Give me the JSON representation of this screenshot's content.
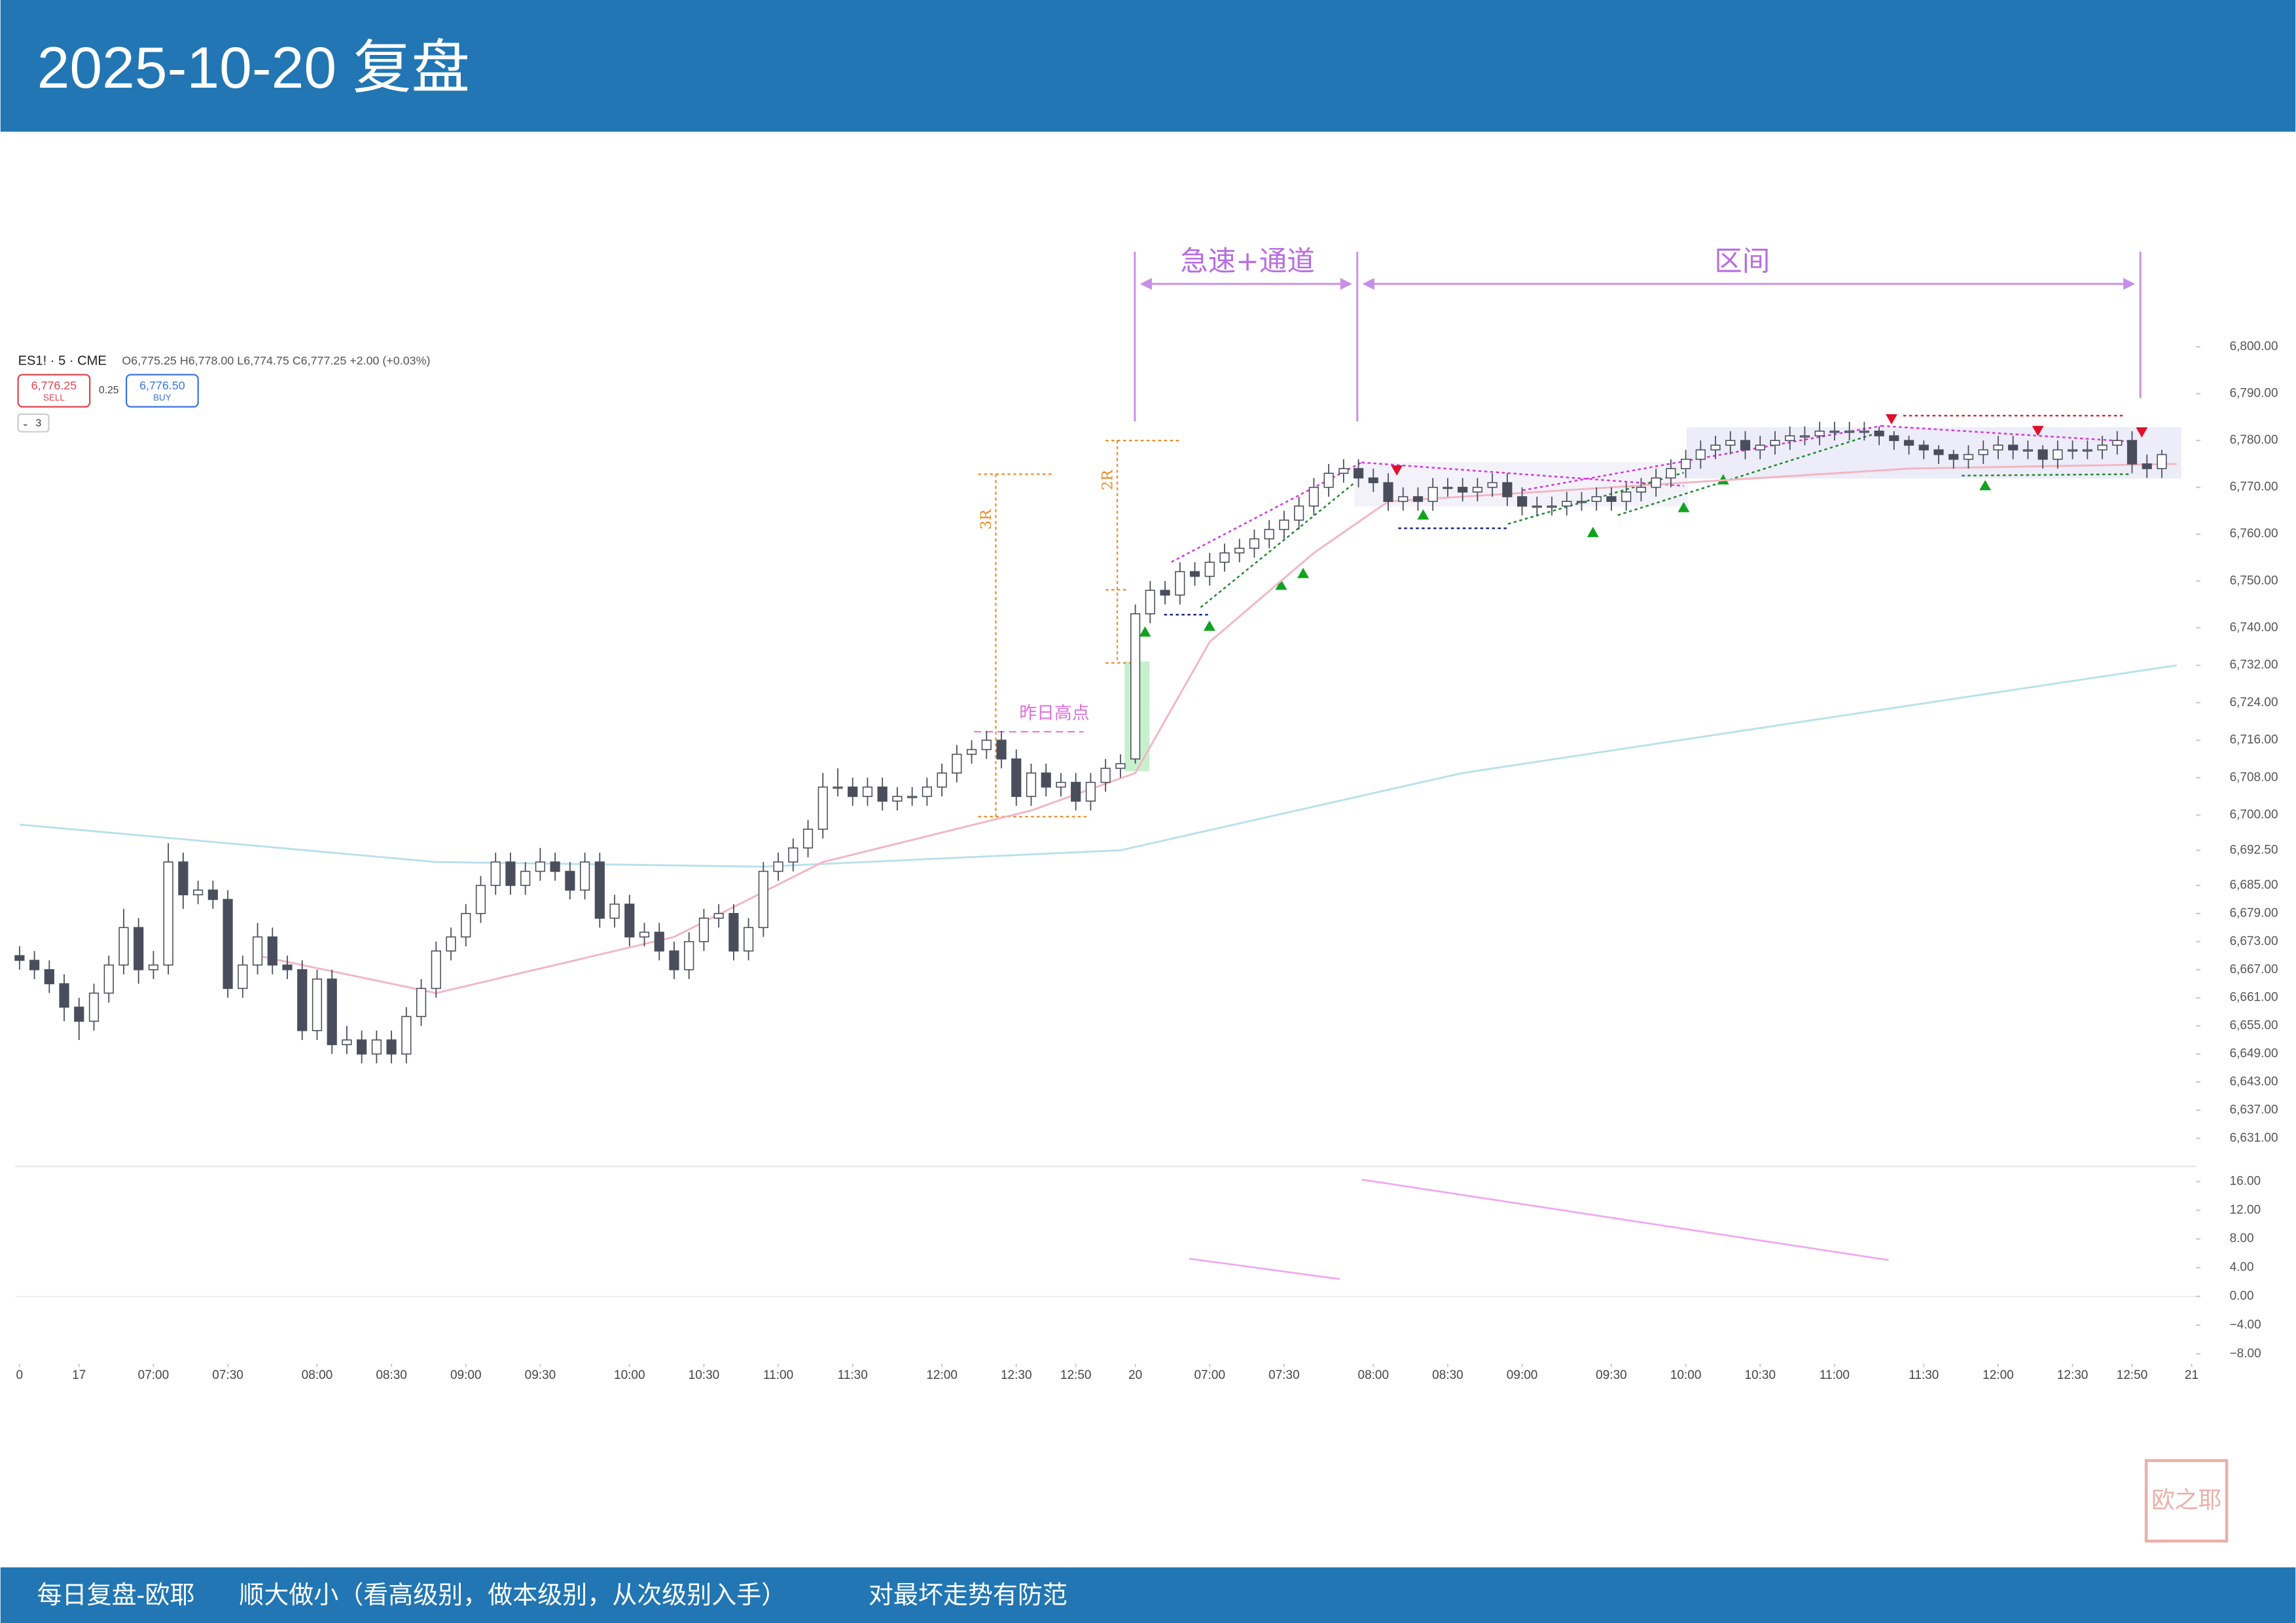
{
  "header": {
    "title": "2025-10-20 复盘"
  },
  "footer": {
    "items": [
      "每日复盘-欧耶",
      "顺大做小（看高级别，做本级别，从次级别入手）",
      "对最坏走势有防范"
    ]
  },
  "stamp": "欧之耶",
  "chart_data": {
    "type": "candlestick",
    "symbol": "ES1! · 5 · CME",
    "ohlc_legend": "O6,775.25 H6,778.00 L6,774.75 C6,777.25 +2.00 (+0.03%)",
    "sell_price": "6,776.25",
    "sell_label": "SELL",
    "spread": "0.25",
    "buy_price": "6,776.50",
    "buy_label": "BUY",
    "indicator_count": "3",
    "annotations": {
      "fast_channel": "急速+通道",
      "range": "区间",
      "prev_high": "昨日高点",
      "r3": "3R",
      "r2": "2R"
    },
    "up_color": "#ffffff",
    "down_color": "#4a4e5c",
    "outline_color": "#4a4e5c",
    "xlim": [
      0,
      146
    ],
    "xticks": [
      {
        "value": 0,
        "label": "0"
      },
      {
        "value": 4,
        "label": "17"
      },
      {
        "value": 9,
        "label": "07:00"
      },
      {
        "value": 14,
        "label": "07:30"
      },
      {
        "value": 20,
        "label": "08:00"
      },
      {
        "value": 25,
        "label": "08:30"
      },
      {
        "value": 30,
        "label": "09:00"
      },
      {
        "value": 35,
        "label": "09:30"
      },
      {
        "value": 41,
        "label": "10:00"
      },
      {
        "value": 46,
        "label": "10:30"
      },
      {
        "value": 51,
        "label": "11:00"
      },
      {
        "value": 56,
        "label": "11:30"
      },
      {
        "value": 62,
        "label": "12:00"
      },
      {
        "value": 67,
        "label": "12:30"
      },
      {
        "value": 71,
        "label": "12:50"
      },
      {
        "value": 75,
        "label": "20"
      },
      {
        "value": 80,
        "label": "07:00"
      },
      {
        "value": 85,
        "label": "07:30"
      },
      {
        "value": 91,
        "label": "08:00"
      },
      {
        "value": 96,
        "label": "08:30"
      },
      {
        "value": 101,
        "label": "09:00"
      },
      {
        "value": 107,
        "label": "09:30"
      },
      {
        "value": 112,
        "label": "10:00"
      },
      {
        "value": 117,
        "label": "10:30"
      },
      {
        "value": 122,
        "label": "11:00"
      },
      {
        "value": 128,
        "label": "11:30"
      },
      {
        "value": 133,
        "label": "12:00"
      },
      {
        "value": 138,
        "label": "12:30"
      },
      {
        "value": 142,
        "label": "12:50"
      },
      {
        "value": 146,
        "label": "21"
      }
    ],
    "ylim": [
      6625,
      6800
    ],
    "yticks": [
      {
        "value": 6800,
        "label": "6,800.00"
      },
      {
        "value": 6790,
        "label": "6,790.00"
      },
      {
        "value": 6780,
        "label": "6,780.00"
      },
      {
        "value": 6770,
        "label": "6,770.00"
      },
      {
        "value": 6760,
        "label": "6,760.00"
      },
      {
        "value": 6750,
        "label": "6,750.00"
      },
      {
        "value": 6740,
        "label": "6,740.00"
      },
      {
        "value": 6732,
        "label": "6,732.00"
      },
      {
        "value": 6724,
        "label": "6,724.00"
      },
      {
        "value": 6716,
        "label": "6,716.00"
      },
      {
        "value": 6708,
        "label": "6,708.00"
      },
      {
        "value": 6700,
        "label": "6,700.00"
      },
      {
        "value": 6692.5,
        "label": "6,692.50"
      },
      {
        "value": 6685,
        "label": "6,685.00"
      },
      {
        "value": 6679,
        "label": "6,679.00"
      },
      {
        "value": 6673,
        "label": "6,673.00"
      },
      {
        "value": 6667,
        "label": "6,667.00"
      },
      {
        "value": 6661,
        "label": "6,661.00"
      },
      {
        "value": 6655,
        "label": "6,655.00"
      },
      {
        "value": 6649,
        "label": "6,649.00"
      },
      {
        "value": 6643,
        "label": "6,643.00"
      },
      {
        "value": 6637,
        "label": "6,637.00"
      },
      {
        "value": 6631,
        "label": "6,631.00"
      }
    ],
    "macd_ylim": [
      -9,
      17.5
    ],
    "macd_yticks": [
      {
        "value": 16,
        "label": "16.00"
      },
      {
        "value": 12,
        "label": "12.00"
      },
      {
        "value": 8,
        "label": "8.00"
      },
      {
        "value": 4,
        "label": "4.00"
      },
      {
        "value": 0,
        "label": "0.00"
      },
      {
        "value": -4,
        "label": "−4.00"
      },
      {
        "value": -8,
        "label": "−8.00"
      }
    ],
    "series": [
      {
        "color": "#b9e0ec",
        "x": [
          0,
          28,
          50,
          74,
          97,
          122,
          145
        ],
        "values": [
          6698,
          6690,
          6689,
          6692.5,
          6709,
          6721,
          6732
        ]
      },
      {
        "color": "#f2b6c2",
        "x": [
          16,
          28,
          44,
          54,
          68,
          75,
          80,
          87,
          92,
          107,
          127,
          145
        ],
        "values": [
          6670,
          6662,
          6674,
          6690,
          6701,
          6709,
          6737,
          6756,
          6767,
          6770,
          6774,
          6775
        ]
      }
    ],
    "ohlc": [
      [
        6670,
        6672,
        6667,
        6669
      ],
      [
        6669,
        6671,
        6665,
        6667
      ],
      [
        6667,
        6669,
        6662,
        6664
      ],
      [
        6664,
        6666,
        6656,
        6659
      ],
      [
        6659,
        6661,
        6652,
        6656
      ],
      [
        6656,
        6664,
        6654,
        6662
      ],
      [
        6662,
        6670,
        6660,
        6668
      ],
      [
        6668,
        6680,
        6666,
        6676
      ],
      [
        6676,
        6678,
        6664,
        6667
      ],
      [
        6667,
        6671,
        6665,
        6668
      ],
      [
        6668,
        6694,
        6666,
        6690
      ],
      [
        6690,
        6692,
        6680,
        6683
      ],
      [
        6683,
        6686,
        6681,
        6684
      ],
      [
        6684,
        6686,
        6680,
        6682
      ],
      [
        6682,
        6684,
        6661,
        6663
      ],
      [
        6663,
        6670,
        6661,
        6668
      ],
      [
        6668,
        6677,
        6666,
        6674
      ],
      [
        6674,
        6676,
        6666,
        6668
      ],
      [
        6668,
        6670,
        6665,
        6667
      ],
      [
        6667,
        6669,
        6652,
        6654
      ],
      [
        6654,
        6667,
        6652,
        6665
      ],
      [
        6665,
        6667,
        6649,
        6651
      ],
      [
        6651,
        6655,
        6649,
        6652
      ],
      [
        6652,
        6654,
        6647,
        6649
      ],
      [
        6649,
        6654,
        6647,
        6652
      ],
      [
        6652,
        6654,
        6647,
        6649
      ],
      [
        6649,
        6659,
        6647,
        6657
      ],
      [
        6657,
        6665,
        6655,
        6663
      ],
      [
        6663,
        6673,
        6661,
        6671
      ],
      [
        6671,
        6676,
        6669,
        6674
      ],
      [
        6674,
        6681,
        6672,
        6679
      ],
      [
        6679,
        6687,
        6677,
        6685
      ],
      [
        6685,
        6692,
        6683,
        6690
      ],
      [
        6690,
        6692,
        6683,
        6685
      ],
      [
        6685,
        6690,
        6683,
        6688
      ],
      [
        6688,
        6693,
        6686,
        6690
      ],
      [
        6690,
        6692,
        6686,
        6688
      ],
      [
        6688,
        6690,
        6682,
        6684
      ],
      [
        6684,
        6692,
        6682,
        6690
      ],
      [
        6690,
        6692,
        6676,
        6678
      ],
      [
        6678,
        6683,
        6676,
        6681
      ],
      [
        6681,
        6683,
        6672,
        6674
      ],
      [
        6674,
        6677,
        6672,
        6675
      ],
      [
        6675,
        6677,
        6669,
        6671
      ],
      [
        6671,
        6673,
        6665,
        6667
      ],
      [
        6667,
        6675,
        6665,
        6673
      ],
      [
        6673,
        6680,
        6671,
        6678
      ],
      [
        6678,
        6681,
        6676,
        6679
      ],
      [
        6679,
        6681,
        6669,
        6671
      ],
      [
        6671,
        6678,
        6669,
        6676
      ],
      [
        6676,
        6690,
        6674,
        6688
      ],
      [
        6688,
        6692,
        6686,
        6690
      ],
      [
        6690,
        6695,
        6688,
        6693
      ],
      [
        6693,
        6699,
        6691,
        6697
      ],
      [
        6697,
        6709,
        6695,
        6706
      ],
      [
        6706,
        6710,
        6704,
        6706
      ],
      [
        6706,
        6708,
        6702,
        6704
      ],
      [
        6704,
        6708,
        6702,
        6706
      ],
      [
        6706,
        6708,
        6701,
        6703
      ],
      [
        6703,
        6706,
        6701,
        6704
      ],
      [
        6704,
        6706,
        6702,
        6704
      ],
      [
        6704,
        6708,
        6702,
        6706
      ],
      [
        6706,
        6711,
        6704,
        6709
      ],
      [
        6709,
        6715,
        6707,
        6713
      ],
      [
        6713,
        6716,
        6711,
        6714
      ],
      [
        6714,
        6718,
        6712,
        6716
      ],
      [
        6716,
        6718,
        6710,
        6712
      ],
      [
        6712,
        6714,
        6702,
        6704
      ],
      [
        6704,
        6711,
        6702,
        6709
      ],
      [
        6709,
        6711,
        6704,
        6706
      ],
      [
        6706,
        6709,
        6704,
        6707
      ],
      [
        6707,
        6709,
        6701,
        6703
      ],
      [
        6703,
        6709,
        6701,
        6707
      ],
      [
        6707,
        6712,
        6705,
        6710
      ],
      [
        6710,
        6713,
        6708,
        6711
      ],
      [
        6712,
        6745,
        6711,
        6743
      ],
      [
        6743,
        6750,
        6741,
        6748
      ],
      [
        6748,
        6750,
        6745,
        6747
      ],
      [
        6747,
        6754,
        6745,
        6752
      ],
      [
        6752,
        6754,
        6749,
        6751
      ],
      [
        6751,
        6756,
        6749,
        6754
      ],
      [
        6754,
        6758,
        6752,
        6756
      ],
      [
        6756,
        6759,
        6754,
        6757
      ],
      [
        6757,
        6761,
        6755,
        6759
      ],
      [
        6759,
        6763,
        6757,
        6761
      ],
      [
        6761,
        6765,
        6759,
        6763
      ],
      [
        6763,
        6768,
        6761,
        6766
      ],
      [
        6766,
        6772,
        6764,
        6770
      ],
      [
        6770,
        6775,
        6768,
        6773
      ],
      [
        6773,
        6776,
        6771,
        6774
      ],
      [
        6774,
        6776,
        6770,
        6772
      ],
      [
        6772,
        6774,
        6769,
        6771
      ],
      [
        6771,
        6773,
        6765,
        6767
      ],
      [
        6767,
        6770,
        6765,
        6768
      ],
      [
        6768,
        6770,
        6765,
        6767
      ],
      [
        6767,
        6772,
        6765,
        6770
      ],
      [
        6770,
        6772,
        6768,
        6770
      ],
      [
        6770,
        6772,
        6767,
        6769
      ],
      [
        6769,
        6772,
        6767,
        6770
      ],
      [
        6770,
        6773,
        6768,
        6771
      ],
      [
        6771,
        6773,
        6766,
        6768
      ],
      [
        6768,
        6770,
        6764,
        6766
      ],
      [
        6766,
        6768,
        6764,
        6766
      ],
      [
        6766,
        6768,
        6764,
        6766
      ],
      [
        6766,
        6769,
        6764,
        6767
      ],
      [
        6767,
        6769,
        6765,
        6767
      ],
      [
        6767,
        6770,
        6765,
        6768
      ],
      [
        6768,
        6770,
        6765,
        6767
      ],
      [
        6767,
        6771,
        6765,
        6769
      ],
      [
        6769,
        6772,
        6767,
        6770
      ],
      [
        6770,
        6774,
        6768,
        6772
      ],
      [
        6772,
        6776,
        6770,
        6774
      ],
      [
        6774,
        6778,
        6772,
        6776
      ],
      [
        6776,
        6780,
        6774,
        6778
      ],
      [
        6778,
        6781,
        6776,
        6779
      ],
      [
        6779,
        6782,
        6777,
        6780
      ],
      [
        6780,
        6782,
        6776,
        6778
      ],
      [
        6778,
        6781,
        6776,
        6779
      ],
      [
        6779,
        6782,
        6777,
        6780
      ],
      [
        6780,
        6783,
        6778,
        6781
      ],
      [
        6781,
        6783,
        6779,
        6781
      ],
      [
        6781,
        6784,
        6779,
        6782
      ],
      [
        6782,
        6784,
        6780,
        6782
      ],
      [
        6782,
        6784,
        6780,
        6782
      ],
      [
        6782,
        6784,
        6780,
        6782
      ],
      [
        6782,
        6783,
        6779,
        6781
      ],
      [
        6781,
        6782,
        6778,
        6780
      ],
      [
        6780,
        6781,
        6777,
        6779
      ],
      [
        6779,
        6780,
        6776,
        6778
      ],
      [
        6778,
        6779,
        6775,
        6777
      ],
      [
        6777,
        6778,
        6774,
        6776
      ],
      [
        6776,
        6779,
        6774,
        6777
      ],
      [
        6777,
        6780,
        6775,
        6778
      ],
      [
        6778,
        6781,
        6776,
        6779
      ],
      [
        6779,
        6781,
        6776,
        6778
      ],
      [
        6778,
        6780,
        6776,
        6778
      ],
      [
        6778,
        6779,
        6774,
        6776
      ],
      [
        6776,
        6780,
        6774,
        6778
      ],
      [
        6778,
        6780,
        6776,
        6778
      ],
      [
        6778,
        6780,
        6776,
        6778
      ],
      [
        6778,
        6781,
        6776,
        6779
      ],
      [
        6779,
        6782,
        6777,
        6780
      ],
      [
        6780,
        6782,
        6773,
        6775
      ],
      [
        6775,
        6777,
        6772,
        6774
      ],
      [
        6774,
        6778,
        6772,
        6777
      ]
    ]
  }
}
